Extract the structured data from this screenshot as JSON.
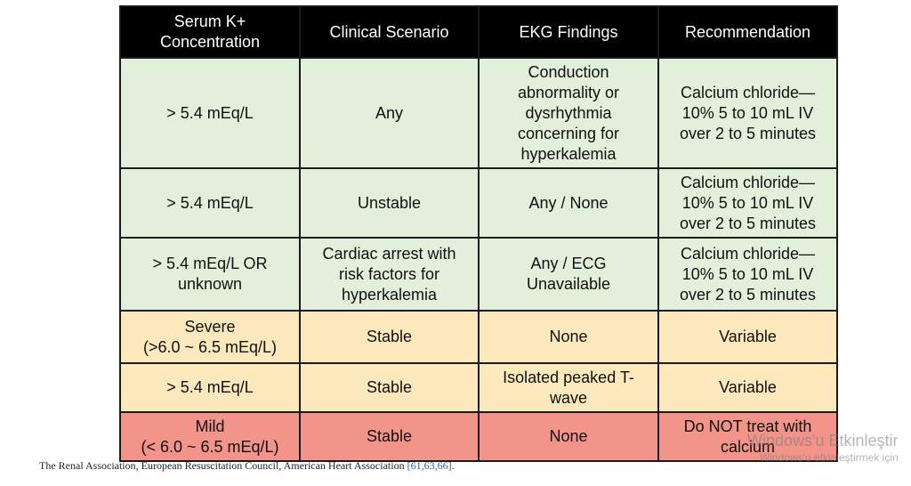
{
  "table": {
    "headers": [
      "Serum K+\nConcentration",
      "Clinical Scenario",
      "EKG Findings",
      "Recommendation"
    ],
    "rows": [
      {
        "cells": [
          "> 5.4 mEq/L",
          "Any",
          "Conduction\nabnormality or\ndysrhythmia\nconcerning for\nhyperkalemia",
          "Calcium chloride—\n10% 5 to 10 mL IV\nover 2 to 5 minutes"
        ]
      },
      {
        "cells": [
          "> 5.4 mEq/L",
          "Unstable",
          "Any / None",
          "Calcium chloride—\n10% 5 to 10 mL IV\nover 2 to 5 minutes"
        ]
      },
      {
        "cells": [
          "> 5.4 mEq/L OR\nunknown",
          "Cardiac arrest with\nrisk factors for\nhyperkalemia",
          "Any / ECG\nUnavailable",
          "Calcium chloride—\n10% 5 to 10 mL IV\nover 2 to 5 minutes"
        ]
      },
      {
        "cells": [
          "Severe\n(>6.0 ~ 6.5 mEq/L)",
          "Stable",
          "None",
          "Variable"
        ]
      },
      {
        "cells": [
          "> 5.4 mEq/L",
          "Stable",
          "Isolated peaked T-\nwave",
          "Variable"
        ]
      },
      {
        "cells": [
          "Mild\n(< 6.0 ~ 6.5 mEq/L)",
          "Stable",
          "None",
          "Do NOT treat with\ncalcium"
        ]
      }
    ],
    "row_colors": {
      "green": "#e2efda",
      "yellow": "#fce8bd",
      "red": "#f2948a",
      "header": "#000000"
    }
  },
  "caption": {
    "text": "The Renal Association, European Resuscitation Council, American Heart Association ",
    "refs": "[61,63,66]",
    "end": "."
  },
  "watermark": {
    "line1": "Windows'u Etkinleştir",
    "line2": "Windows'u etkinleştirmek için"
  }
}
